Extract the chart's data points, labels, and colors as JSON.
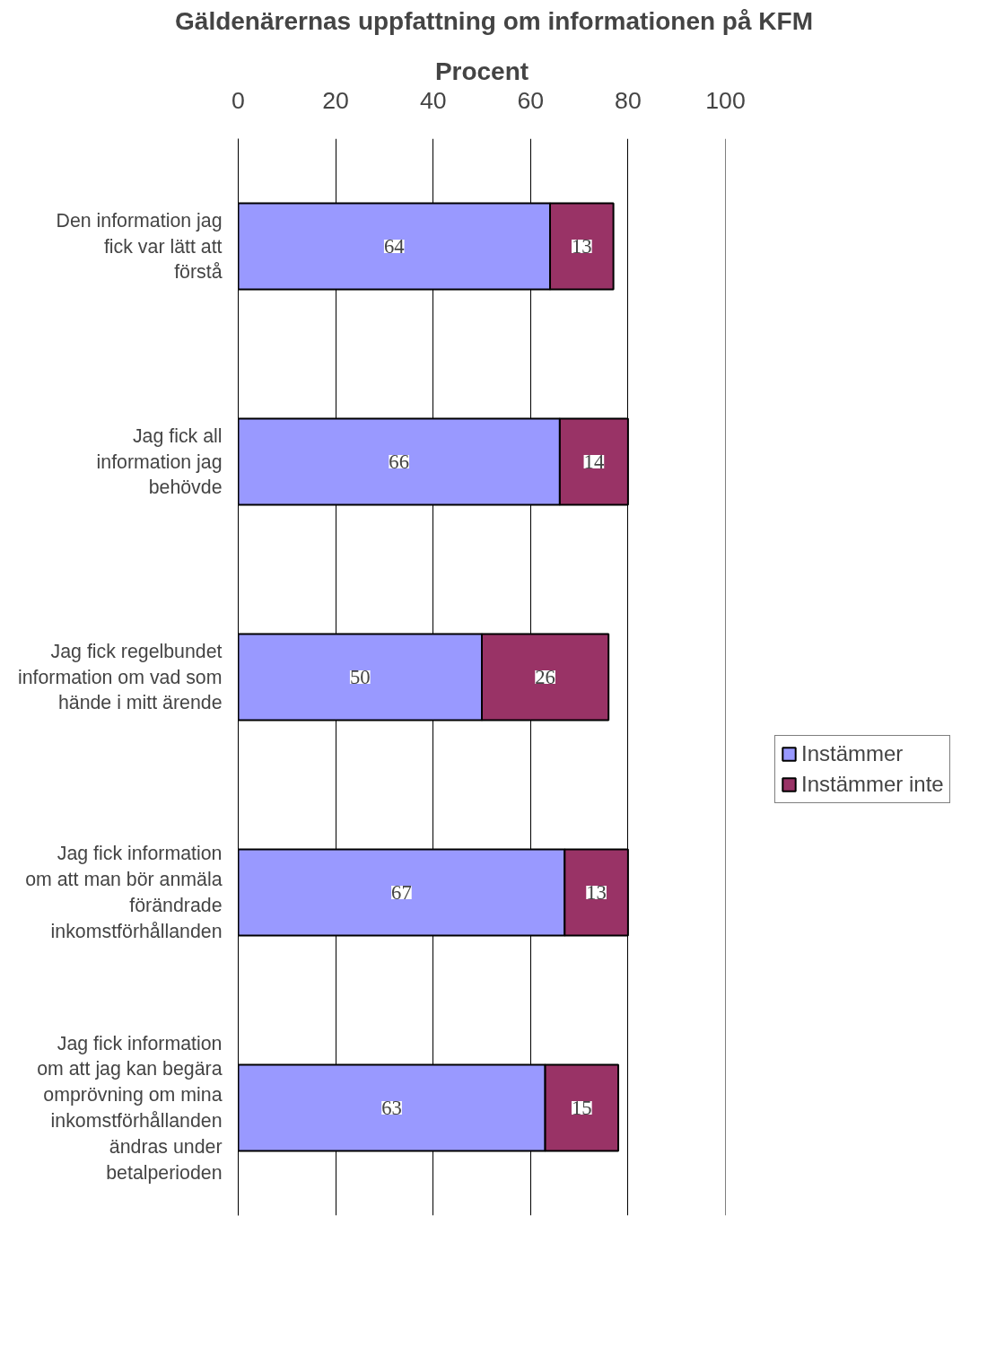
{
  "chart_data": {
    "type": "bar",
    "title": "Gäldenärernas uppfattning om informationen på KFM",
    "xlabel": "Procent",
    "orientation": "horizontal",
    "stacked": true,
    "categories": [
      "Den information jag fick var lätt att förstå",
      "Jag fick all information jag behövde",
      "Jag fick regelbundet information om vad som hände i mitt ärende",
      "Jag fick information om att man bör anmäla förändrade inkomstförhållanden",
      "Jag fick information om att jag kan begära omprövning om mina inkomstförhållanden ändras under betalperioden"
    ],
    "series": [
      {
        "name": "Instämmer",
        "color": "#9999ff",
        "values": [
          64,
          66,
          50,
          67,
          63
        ]
      },
      {
        "name": "Instämmer inte",
        "color": "#993366",
        "values": [
          13,
          14,
          26,
          13,
          15
        ]
      }
    ],
    "xlim": [
      0,
      100
    ],
    "xticks": [
      0,
      20,
      40,
      60,
      80,
      100
    ],
    "grid": "x",
    "legend": "right",
    "data_labels": true
  }
}
